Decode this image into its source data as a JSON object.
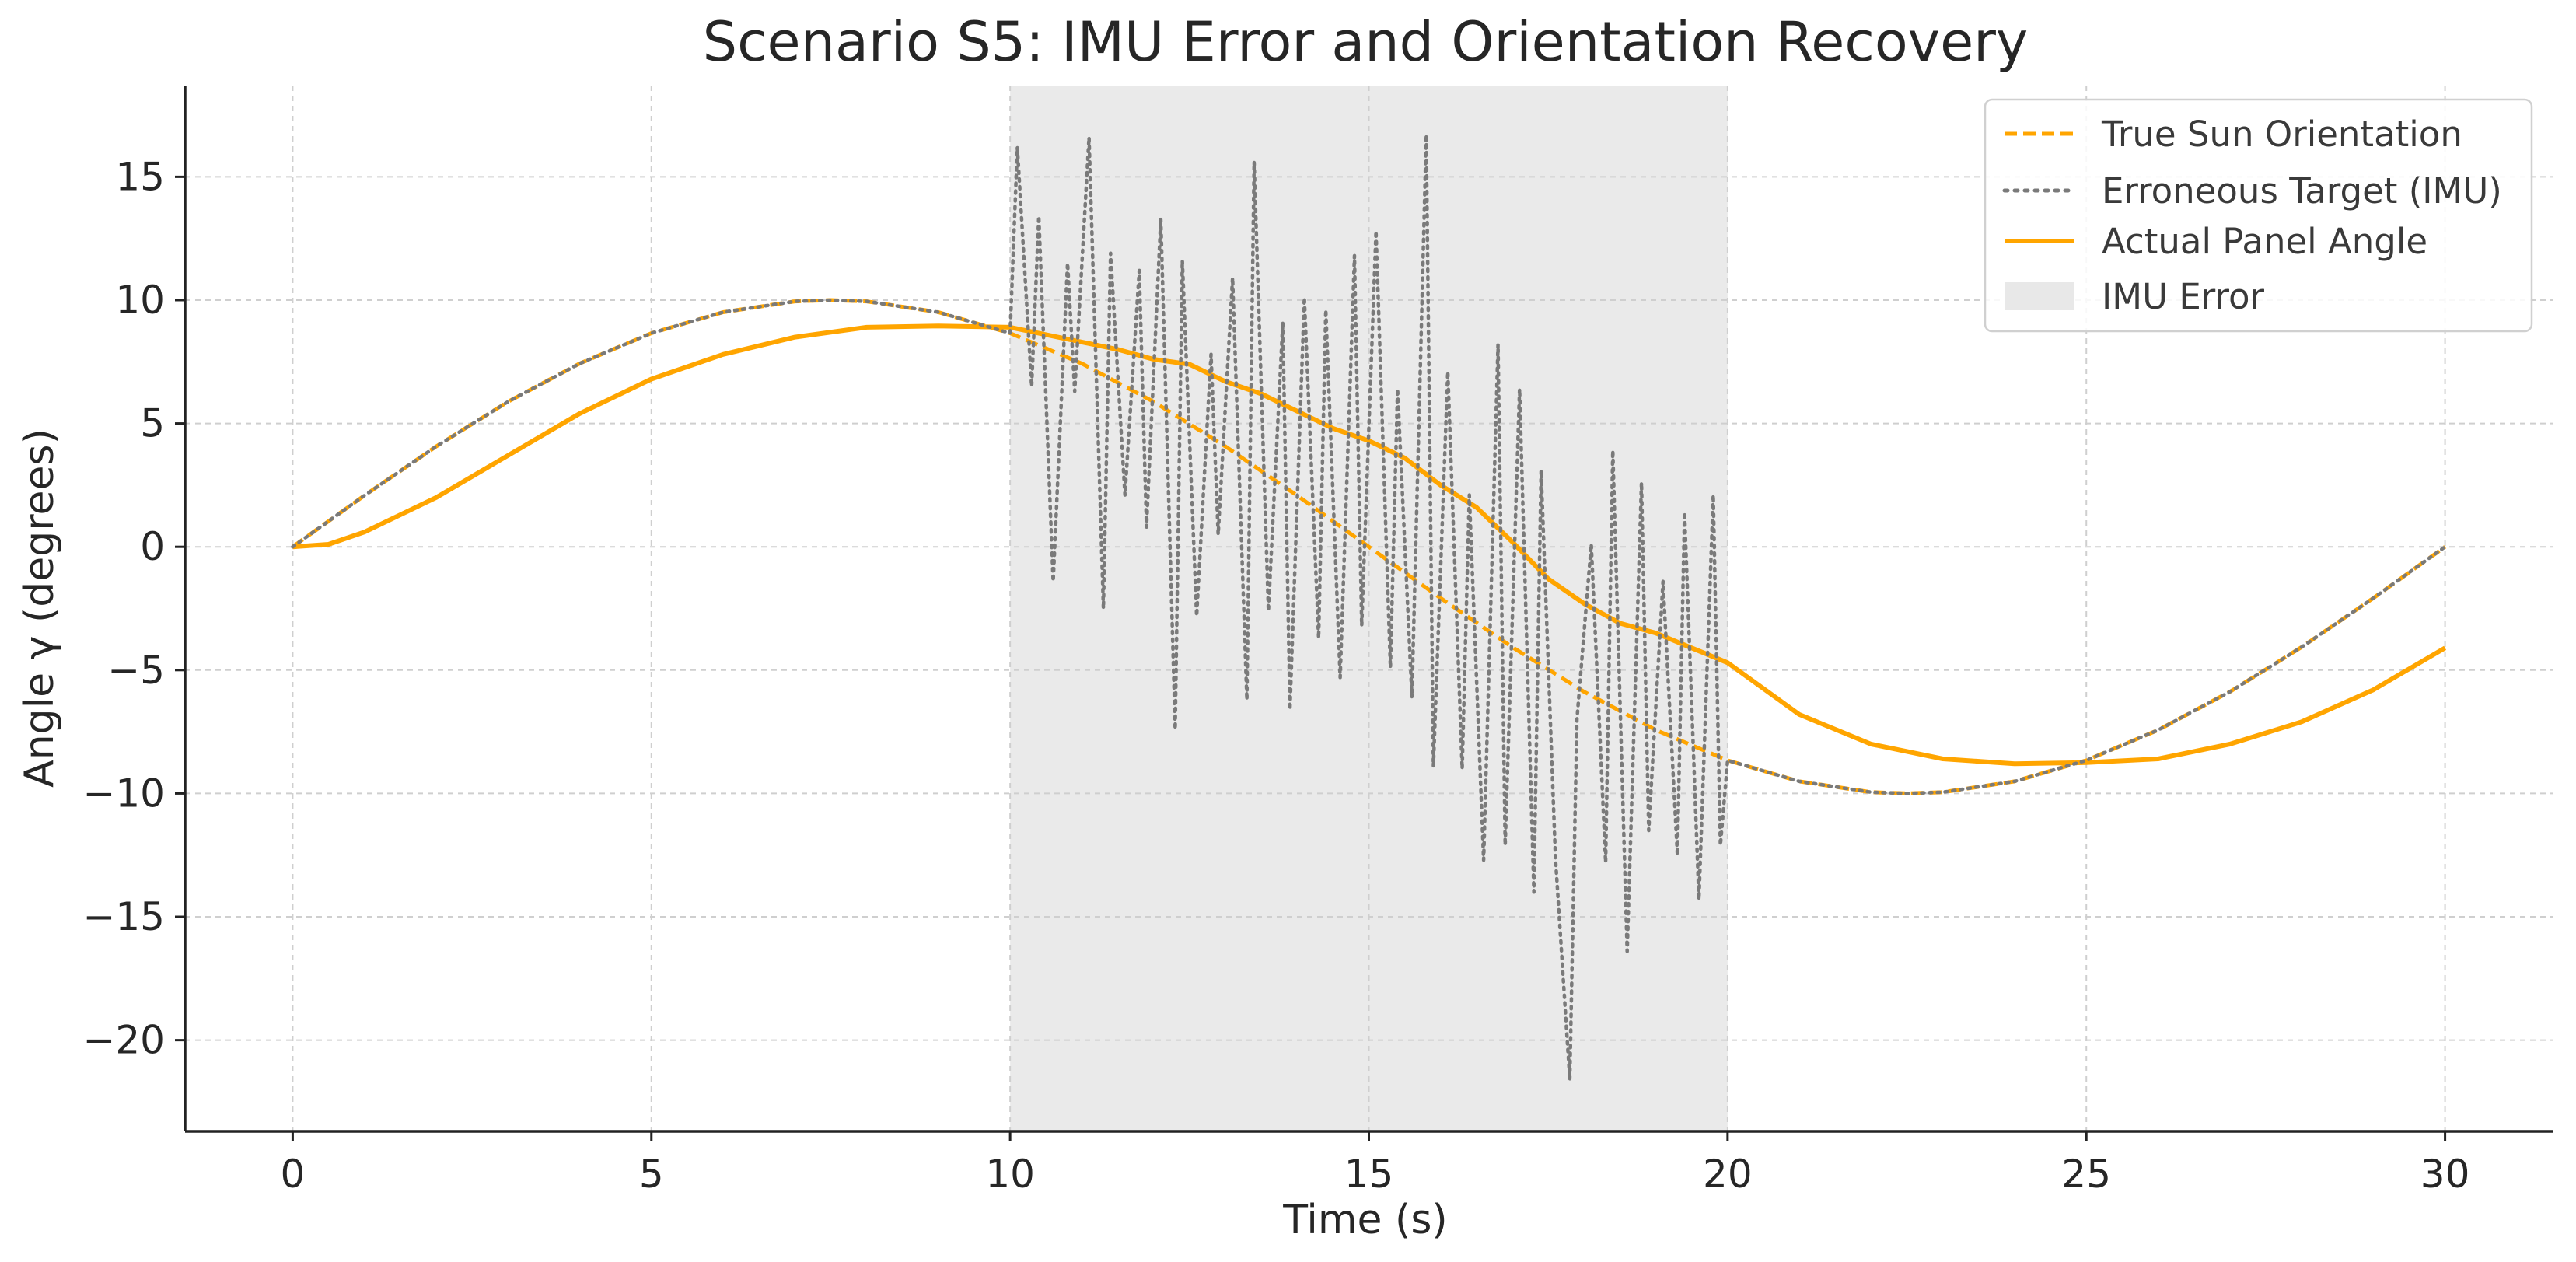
{
  "chart_data": {
    "type": "line",
    "title": "Scenario S5: IMU Error and Orientation Recovery",
    "xlabel": "Time (s)",
    "ylabel": "Angle γ (degrees)",
    "xlim": [
      -1.5,
      31.5
    ],
    "ylim": [
      -23.7,
      18.7
    ],
    "xticks": [
      0,
      5,
      10,
      15,
      20,
      25,
      30
    ],
    "yticks": [
      15,
      10,
      5,
      0,
      -5,
      -10,
      -15,
      -20
    ],
    "xtick_labels": [
      "0",
      "5",
      "10",
      "15",
      "20",
      "25",
      "30"
    ],
    "ytick_labels": [
      "15",
      "10",
      "5",
      "0",
      "−5",
      "−10",
      "−15",
      "−20"
    ],
    "grid": true,
    "legend_position": "top-right",
    "shaded_region": {
      "label": "IMU Error",
      "x_start": 10,
      "x_end": 20,
      "color": "#d6d6d6"
    },
    "series": [
      {
        "name": "True Sun Orientation",
        "style": "dashed",
        "color": "#ffa500",
        "x": [
          0,
          1,
          2,
          3,
          4,
          5,
          6,
          7,
          7.5,
          8,
          9,
          10,
          11,
          12,
          13,
          14,
          15,
          16,
          17,
          18,
          19,
          20,
          21,
          22,
          22.5,
          23,
          24,
          25,
          26,
          27,
          28,
          29,
          30
        ],
        "y": [
          0,
          2.08,
          4.07,
          5.88,
          7.43,
          8.66,
          9.51,
          9.95,
          10,
          9.95,
          9.51,
          8.66,
          7.43,
          5.88,
          4.07,
          2.08,
          0,
          -2.08,
          -4.07,
          -5.88,
          -7.43,
          -8.66,
          -9.51,
          -9.95,
          -10,
          -9.95,
          -9.51,
          -8.66,
          -7.43,
          -5.88,
          -4.07,
          -2.08,
          0
        ]
      },
      {
        "name": "Erroneous Target (IMU)",
        "style": "dotted",
        "color": "#7a7a7a",
        "x": [
          0,
          1,
          2,
          3,
          4,
          5,
          6,
          7,
          7.5,
          8,
          9,
          10,
          10.1,
          10.3,
          10.4,
          10.6,
          10.8,
          10.9,
          11.1,
          11.3,
          11.4,
          11.6,
          11.8,
          11.9,
          12.1,
          12.3,
          12.4,
          12.6,
          12.8,
          12.9,
          13.1,
          13.3,
          13.4,
          13.6,
          13.8,
          13.9,
          14.1,
          14.3,
          14.4,
          14.6,
          14.8,
          14.9,
          15.1,
          15.3,
          15.4,
          15.6,
          15.8,
          15.9,
          16.1,
          16.3,
          16.4,
          16.6,
          16.8,
          16.9,
          17.1,
          17.3,
          17.4,
          17.6,
          17.8,
          17.9,
          18.1,
          18.3,
          18.4,
          18.6,
          18.8,
          18.9,
          19.1,
          19.3,
          19.4,
          19.6,
          19.8,
          19.9,
          20,
          21,
          22,
          22.5,
          23,
          24,
          25,
          26,
          27,
          28,
          29,
          30
        ],
        "y": [
          0,
          2.08,
          4.07,
          5.88,
          7.43,
          8.66,
          9.51,
          9.95,
          10,
          9.95,
          9.51,
          8.66,
          16.2,
          6.5,
          13.4,
          -1.4,
          11.5,
          6.3,
          16.6,
          -2.5,
          11.9,
          2.1,
          11.2,
          0.8,
          13.3,
          -7.4,
          11.6,
          -2.8,
          7.8,
          0.5,
          10.9,
          -6.2,
          15.6,
          -2.6,
          9.1,
          -6.6,
          10.1,
          -3.7,
          9.6,
          -5.3,
          11.8,
          -3.2,
          12.8,
          -4.9,
          6.4,
          -6.1,
          16.7,
          -8.9,
          7.1,
          -9.0,
          2.1,
          -12.7,
          8.2,
          -12.1,
          6.4,
          -14.0,
          3.1,
          -12.6,
          -21.6,
          -7.0,
          0.1,
          -12.8,
          3.9,
          -16.4,
          2.6,
          -11.5,
          -1.4,
          -12.5,
          1.4,
          -14.3,
          2.1,
          -12.1,
          -8.66,
          -9.51,
          -9.95,
          -10,
          -9.95,
          -9.51,
          -8.66,
          -7.43,
          -5.88,
          -4.07,
          -2.08,
          0
        ]
      },
      {
        "name": "Actual Panel Angle",
        "style": "solid",
        "color": "#ffa500",
        "x": [
          0,
          0.5,
          1,
          2,
          3,
          4,
          5,
          6,
          7,
          8,
          9,
          10,
          10.5,
          11,
          11.5,
          12,
          12.5,
          13,
          13.5,
          14,
          14.5,
          15,
          15.5,
          16,
          16.5,
          17,
          17.5,
          18,
          18.5,
          19,
          19.5,
          20,
          21,
          22,
          23,
          24,
          25,
          26,
          27,
          28,
          29,
          30
        ],
        "y": [
          0,
          0.1,
          0.6,
          2,
          3.7,
          5.4,
          6.8,
          7.8,
          8.5,
          8.9,
          8.95,
          8.9,
          8.6,
          8.3,
          8.0,
          7.6,
          7.4,
          6.7,
          6.2,
          5.5,
          4.8,
          4.3,
          3.6,
          2.5,
          1.6,
          0.2,
          -1.3,
          -2.3,
          -3.1,
          -3.5,
          -4.1,
          -4.7,
          -6.8,
          -8.0,
          -8.6,
          -8.8,
          -8.75,
          -8.6,
          -8.0,
          -7.1,
          -5.8,
          -4.1
        ]
      }
    ]
  }
}
